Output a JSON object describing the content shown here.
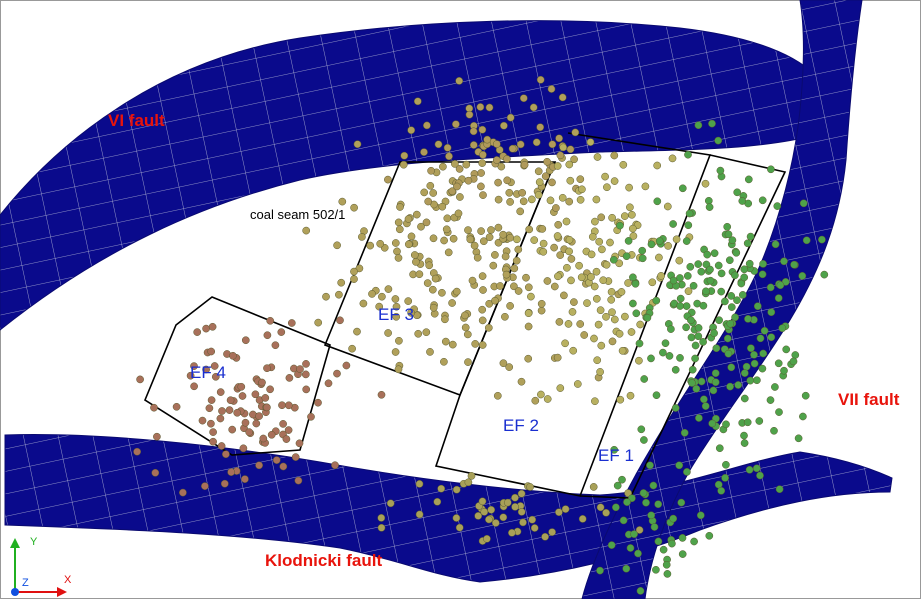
{
  "labels": {
    "vi_fault": "VI fault",
    "vii_fault": "VII fault",
    "klodnicki_fault": "Klodnicki fault",
    "coal_seam": "coal seam 502/1"
  },
  "panels": [
    "EF 1",
    "EF 2",
    "EF 3",
    "EF 4"
  ],
  "axes": {
    "x": "X",
    "y": "Y",
    "z": "Z"
  }
}
